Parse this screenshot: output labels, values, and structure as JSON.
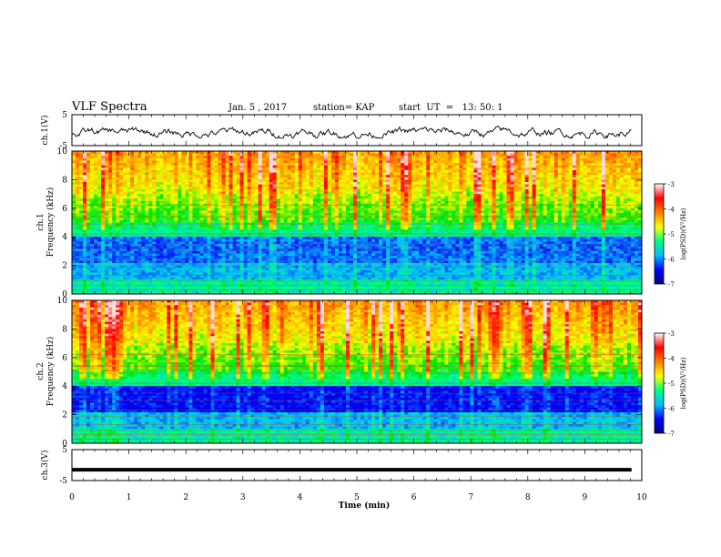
{
  "header": {
    "title": "VLF Spectra",
    "date": "Jan. 5 , 2017",
    "station": "station= KAP",
    "start": "start  UT  =   13: 50: 1"
  },
  "chart_data": [
    {
      "type": "line",
      "panel": "ch1-waveform",
      "ylabel": "ch.1(V)",
      "ylim": [
        -5,
        5
      ],
      "yticks": [
        "5",
        "-5"
      ],
      "xlim": [
        0,
        10
      ],
      "trace": "noisy waveform, approx. -2.5 to 1.5 V"
    },
    {
      "type": "heatmap",
      "panel": "ch1-spectrogram",
      "ylabel_top": "ch.1",
      "ylabel": "Frequency  (kHz)",
      "ylim": [
        0,
        10
      ],
      "yticks": [
        "0",
        "2",
        "4",
        "6",
        "8",
        "10"
      ],
      "xlim": [
        0,
        10
      ],
      "colorbar": {
        "label": "log(PSD)(V²/Hz)",
        "range": [
          -7,
          -3
        ],
        "ticks": [
          "-3",
          "-4",
          "-5",
          "-6",
          "-7"
        ],
        "colors": [
          "#000080",
          "#0000ff",
          "#00c0ff",
          "#00ff80",
          "#ffff00",
          "#ff8000",
          "#ff0000",
          "#ffffff"
        ]
      },
      "colorbar_mid": "#00ff00"
    },
    {
      "type": "heatmap",
      "panel": "ch2-spectrogram",
      "ylabel_top": "ch.2",
      "ylabel": "Frequency  (kHz)",
      "ylim": [
        0,
        10
      ],
      "yticks": [
        "0",
        "2",
        "4",
        "6",
        "8",
        "10"
      ],
      "xlim": [
        0,
        10
      ],
      "colorbar": {
        "label": "log(PSD)(V²/Hz)",
        "range": [
          -7,
          -3
        ],
        "ticks": [
          "-3",
          "-4",
          "-5",
          "-6",
          "-7"
        ],
        "colors": [
          "#000080",
          "#0000ff",
          "#00c0ff",
          "#00ff80",
          "#ffff00",
          "#ff8000",
          "#ff0000",
          "#ffffff"
        ]
      }
    },
    {
      "type": "line",
      "panel": "ch3-waveform",
      "ylabel": "ch.3(V)",
      "ylim": [
        -5,
        5
      ],
      "yticks": [
        "5",
        "-5"
      ],
      "xlim": [
        0,
        10
      ],
      "value": -1.5,
      "xlabel": "Time  (min)",
      "xticks": [
        "0",
        "1",
        "2",
        "3",
        "4",
        "5",
        "6",
        "7",
        "8",
        "9",
        "10"
      ]
    }
  ]
}
